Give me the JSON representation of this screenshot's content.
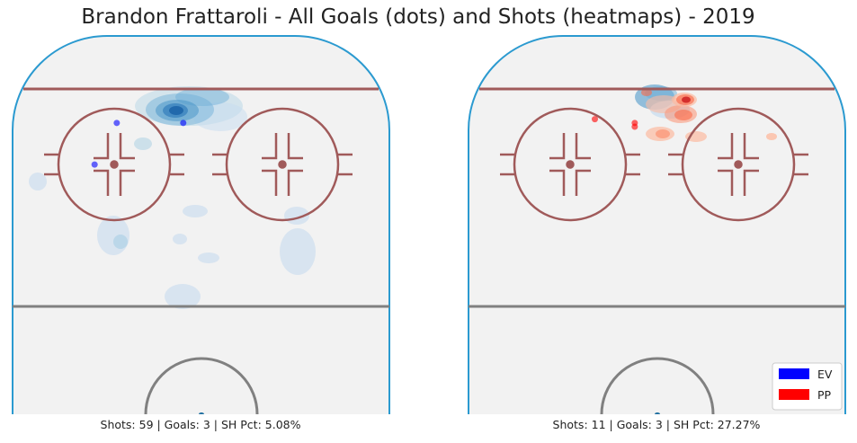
{
  "title": "Brandon Frattaroli - All Goals (dots) and Shots (heatmaps) - 2019",
  "colors": {
    "ev": "#0000ff",
    "pp": "#ff0000",
    "rink_border": "#2b9ad0",
    "rink_fill": "#f2f2f2",
    "line_red": "#a05a5a",
    "line_gray": "#808080"
  },
  "legend": {
    "placement": "bottom-right",
    "items": [
      {
        "label": "EV",
        "color": "#0000ff"
      },
      {
        "label": "PP",
        "color": "#ff0000"
      }
    ]
  },
  "chart_data": [
    {
      "type": "heatmap",
      "strength": "EV",
      "caption": "Shots: 59 | Goals: 3 | SH Pct: 5.08%",
      "shots": 59,
      "goals": 3,
      "sh_pct": "5.08%",
      "goal_points": [
        {
          "x": -19,
          "y": 77
        },
        {
          "x": -4,
          "y": 77
        },
        {
          "x": -24,
          "y": 66
        }
      ]
    },
    {
      "type": "heatmap",
      "strength": "PP",
      "caption": "Shots: 11 | Goals: 3 | SH Pct: 27.27%",
      "shots": 11,
      "goals": 3,
      "sh_pct": "27.27%",
      "goal_points": [
        {
          "x": -14,
          "y": 78
        },
        {
          "x": -5,
          "y": 77
        },
        {
          "x": -5,
          "y": 76
        }
      ]
    }
  ]
}
